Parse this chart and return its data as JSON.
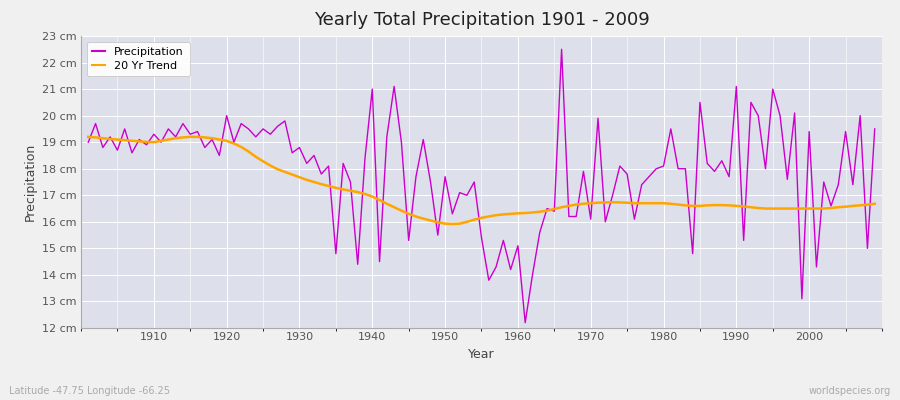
{
  "title": "Yearly Total Precipitation 1901 - 2009",
  "xlabel": "Year",
  "ylabel": "Precipitation",
  "subtitle": "Latitude -47.75 Longitude -66.25",
  "watermark": "worldspecies.org",
  "ylim": [
    12,
    23
  ],
  "yticks": [
    12,
    13,
    14,
    15,
    16,
    17,
    18,
    19,
    20,
    21,
    22,
    23
  ],
  "xlim": [
    1901,
    2009
  ],
  "fig_color": "#f0f0f0",
  "plot_bg_color": "#dde0ea",
  "line_color": "#cc00cc",
  "trend_color": "#ffa500",
  "years": [
    1901,
    1902,
    1903,
    1904,
    1905,
    1906,
    1907,
    1908,
    1909,
    1910,
    1911,
    1912,
    1913,
    1914,
    1915,
    1916,
    1917,
    1918,
    1919,
    1920,
    1921,
    1922,
    1923,
    1924,
    1925,
    1926,
    1927,
    1928,
    1929,
    1930,
    1931,
    1932,
    1933,
    1934,
    1935,
    1936,
    1937,
    1938,
    1939,
    1940,
    1941,
    1942,
    1943,
    1944,
    1945,
    1946,
    1947,
    1948,
    1949,
    1950,
    1951,
    1952,
    1953,
    1954,
    1955,
    1956,
    1957,
    1958,
    1959,
    1960,
    1961,
    1962,
    1963,
    1964,
    1965,
    1966,
    1967,
    1968,
    1969,
    1970,
    1971,
    1972,
    1973,
    1974,
    1975,
    1976,
    1977,
    1978,
    1979,
    1980,
    1981,
    1982,
    1983,
    1984,
    1985,
    1986,
    1987,
    1988,
    1989,
    1990,
    1991,
    1992,
    1993,
    1994,
    1995,
    1996,
    1997,
    1998,
    1999,
    2000,
    2001,
    2002,
    2003,
    2004,
    2005,
    2006,
    2007,
    2008,
    2009
  ],
  "precip": [
    19.0,
    19.7,
    18.8,
    19.2,
    18.7,
    19.5,
    18.6,
    19.1,
    18.9,
    19.3,
    19.0,
    19.5,
    19.2,
    19.7,
    19.3,
    19.4,
    18.8,
    19.1,
    18.5,
    20.0,
    19.0,
    19.7,
    19.5,
    19.2,
    19.5,
    19.3,
    19.6,
    19.8,
    18.6,
    18.8,
    18.2,
    18.5,
    17.8,
    18.1,
    14.8,
    18.2,
    17.5,
    14.4,
    18.4,
    21.0,
    14.5,
    19.2,
    21.1,
    19.0,
    15.3,
    17.7,
    19.1,
    17.5,
    15.5,
    17.7,
    16.3,
    17.1,
    17.0,
    17.5,
    15.4,
    13.8,
    14.3,
    15.3,
    14.2,
    15.1,
    12.2,
    14.0,
    15.6,
    16.5,
    16.4,
    22.5,
    16.2,
    16.2,
    17.9,
    16.1,
    19.9,
    16.0,
    17.0,
    18.1,
    17.8,
    16.1,
    17.4,
    17.7,
    18.0,
    18.1,
    19.5,
    18.0,
    18.0,
    14.8,
    20.5,
    18.2,
    17.9,
    18.3,
    17.7,
    21.1,
    15.3,
    20.5,
    20.0,
    18.0,
    21.0,
    20.0,
    17.6,
    20.1,
    13.1,
    19.4,
    14.3,
    17.5,
    16.6,
    17.4,
    19.4,
    17.4,
    20.0,
    15.0,
    19.5
  ],
  "trend": [
    19.2,
    19.18,
    19.15,
    19.12,
    19.1,
    19.08,
    19.05,
    19.03,
    19.01,
    19.0,
    19.05,
    19.1,
    19.15,
    19.18,
    19.2,
    19.2,
    19.18,
    19.15,
    19.1,
    19.05,
    18.95,
    18.82,
    18.65,
    18.45,
    18.28,
    18.12,
    17.98,
    17.88,
    17.78,
    17.68,
    17.58,
    17.5,
    17.42,
    17.35,
    17.28,
    17.22,
    17.17,
    17.12,
    17.05,
    16.95,
    16.82,
    16.68,
    16.55,
    16.42,
    16.3,
    16.2,
    16.12,
    16.05,
    15.98,
    15.93,
    15.92,
    15.93,
    16.0,
    16.08,
    16.15,
    16.2,
    16.25,
    16.28,
    16.3,
    16.32,
    16.33,
    16.35,
    16.38,
    16.42,
    16.48,
    16.55,
    16.6,
    16.65,
    16.68,
    16.7,
    16.72,
    16.73,
    16.74,
    16.73,
    16.72,
    16.7,
    16.7,
    16.7,
    16.7,
    16.7,
    16.68,
    16.65,
    16.62,
    16.6,
    16.6,
    16.62,
    16.63,
    16.63,
    16.62,
    16.6,
    16.58,
    16.55,
    16.52,
    16.5,
    16.5,
    16.5,
    16.5,
    16.5,
    16.5,
    16.5,
    16.5,
    16.5,
    16.52,
    16.55,
    16.57,
    16.6,
    16.62,
    16.65,
    16.68
  ]
}
